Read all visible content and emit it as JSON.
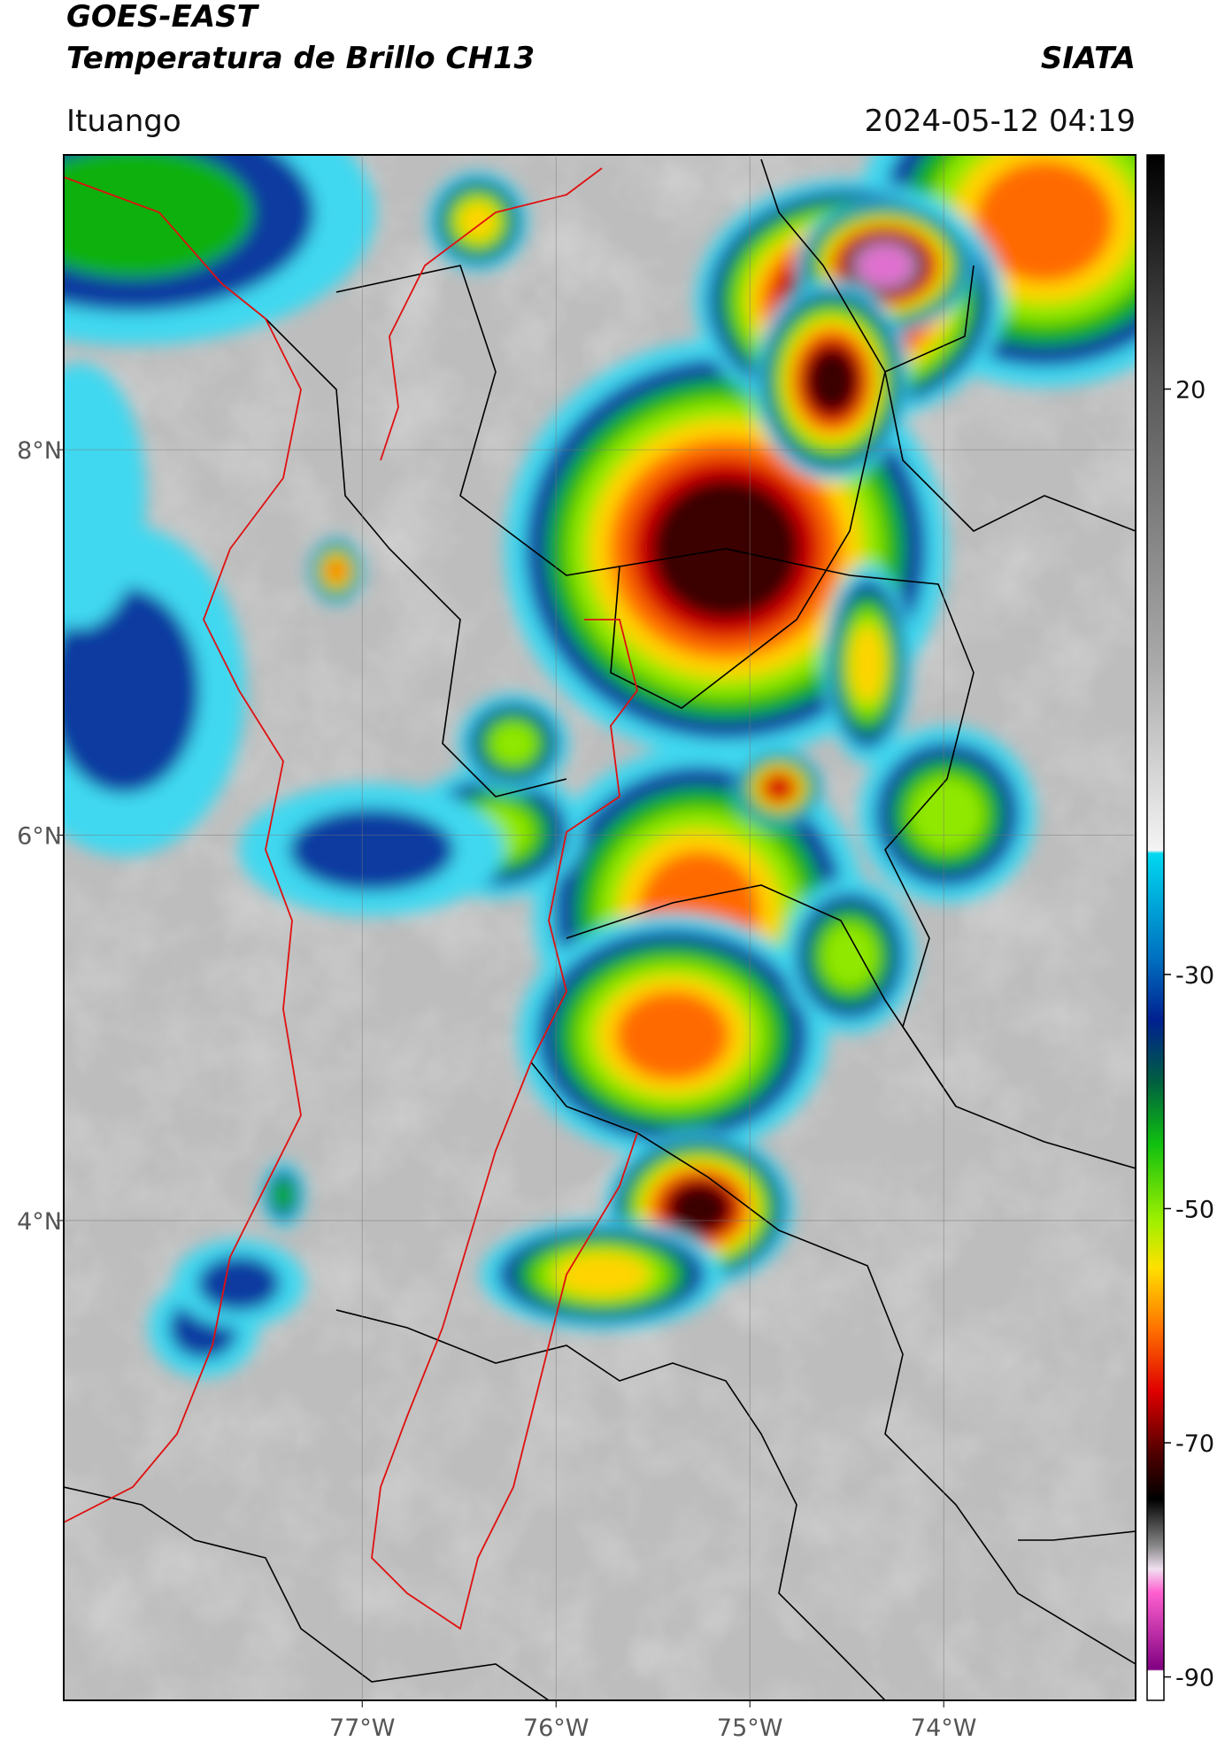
{
  "header": {
    "title": "GOES-EAST",
    "subtitle": "Temperatura de Brillo CH13",
    "source": "SIATA",
    "location": "Ituango",
    "datetime": "2024-05-12 04:19"
  },
  "map": {
    "xlim": [
      -78.54,
      -73.01
    ],
    "ylim": [
      1.51,
      9.53
    ],
    "xticks": [
      {
        "value": -77,
        "label": "77°W"
      },
      {
        "value": -76,
        "label": "76°W"
      },
      {
        "value": -75,
        "label": "75°W"
      },
      {
        "value": -74,
        "label": "74°W"
      }
    ],
    "yticks": [
      {
        "value": 4,
        "label": "4°N"
      },
      {
        "value": 6,
        "label": "6°N"
      },
      {
        "value": 8,
        "label": "8°N"
      }
    ],
    "grid": true
  },
  "colorbar": {
    "lim": [
      -92,
      40
    ],
    "ticks": [
      20,
      -30,
      -50,
      -70,
      -90
    ]
  }
}
